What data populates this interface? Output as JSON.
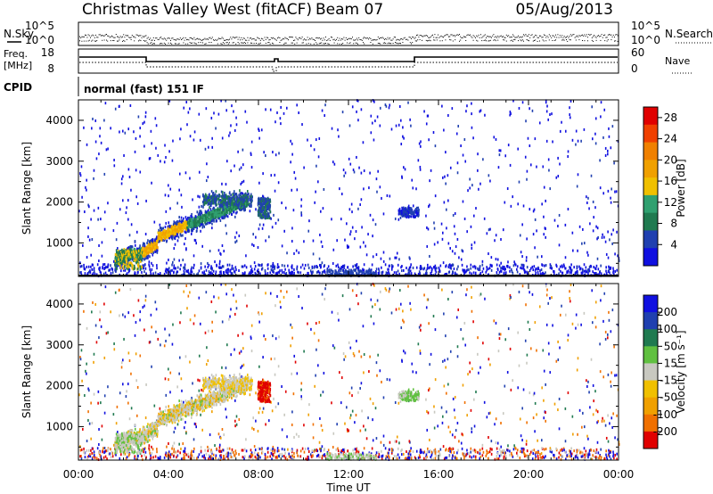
{
  "header": {
    "title": "Christmas Valley West (fitACF)",
    "beam": "Beam 07",
    "date": "05/Aug/2013"
  },
  "panels": {
    "nsky_label": "N.Sky",
    "nsky_ticks": [
      "10^5",
      "10^0"
    ],
    "nsearch_label": "N.Search",
    "nsearch_ticks": [
      "10^5",
      "10^0"
    ],
    "freq_label_1": "Freq.",
    "freq_label_2": "[MHz]",
    "freq_ticks": [
      "18",
      "8"
    ],
    "nave_label": "Nave",
    "nave_ticks": [
      "60",
      "0"
    ],
    "cpid_label": "CPID",
    "cpid_text": "normal (fast) 151 IF"
  },
  "colors": {
    "power": [
      "#1010e0",
      "#2040b0",
      "#207a50",
      "#30a070",
      "#f0c000",
      "#f0a000",
      "#f08000",
      "#f04000",
      "#e00000"
    ],
    "velocity": [
      "#1010e0",
      "#2040b0",
      "#207a50",
      "#60c040",
      "#c8c8c0",
      "#f0c000",
      "#f0a000",
      "#f07000",
      "#e00000"
    ]
  },
  "chart_data": [
    {
      "type": "heatmap",
      "name": "power",
      "ylabel": "Slant Range [km]",
      "yticks": [
        1000,
        2000,
        3000,
        4000
      ],
      "ylim": [
        180,
        4500
      ],
      "colorbar_label": "Power [dB]",
      "colorbar_ticks": [
        "4",
        "8",
        "12",
        "16",
        "20",
        "24",
        "28"
      ],
      "colorbar_range": [
        0,
        30
      ]
    },
    {
      "type": "heatmap",
      "name": "velocity",
      "ylabel": "Slant Range [km]",
      "yticks": [
        1000,
        2000,
        3000,
        4000
      ],
      "ylim": [
        180,
        4500
      ],
      "colorbar_label": "Velocity [m s⁻¹]",
      "colorbar_ticks": [
        "200",
        "100",
        "50",
        "15",
        "-15",
        "-50",
        "-100",
        "-200"
      ]
    }
  ],
  "xaxis": {
    "label": "Time UT",
    "ticks": [
      "00:00",
      "04:00",
      "08:00",
      "12:00",
      "16:00",
      "20:00",
      "00:00"
    ],
    "range_hours": [
      0,
      24
    ]
  }
}
